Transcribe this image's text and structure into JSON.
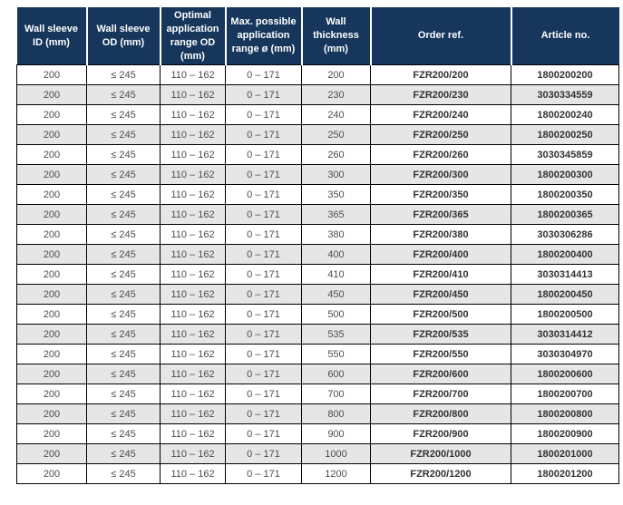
{
  "colors": {
    "header_bg": "#16365c",
    "header_text": "#ffffff",
    "stripe_bg": "#e6e6e6",
    "body_border": "#000000",
    "body_text": "#4d4d4d"
  },
  "table": {
    "columns": [
      {
        "key": "wall-sleeve-id",
        "label": "Wall sleeve ID (mm)"
      },
      {
        "key": "wall-sleeve-od",
        "label": "Wall sleeve OD (mm)"
      },
      {
        "key": "optimal-application-range-od",
        "label": "Optimal application range OD (mm)"
      },
      {
        "key": "max-possible-application-range",
        "label": "Max. possible application range ø (mm)"
      },
      {
        "key": "wall-thickness",
        "label": "Wall thickness (mm)"
      },
      {
        "key": "order-ref",
        "label": "Order ref."
      },
      {
        "key": "article-no",
        "label": "Article no."
      }
    ],
    "rows": [
      [
        "200",
        "≤ 245",
        "110 – 162",
        "0 – 171",
        "200",
        "FZR200/200",
        "1800200200"
      ],
      [
        "200",
        "≤ 245",
        "110 – 162",
        "0 – 171",
        "230",
        "FZR200/230",
        "3030334559"
      ],
      [
        "200",
        "≤ 245",
        "110 – 162",
        "0 – 171",
        "240",
        "FZR200/240",
        "1800200240"
      ],
      [
        "200",
        "≤ 245",
        "110 – 162",
        "0 – 171",
        "250",
        "FZR200/250",
        "1800200250"
      ],
      [
        "200",
        "≤ 245",
        "110 – 162",
        "0 – 171",
        "260",
        "FZR200/260",
        "3030345859"
      ],
      [
        "200",
        "≤ 245",
        "110 – 162",
        "0 – 171",
        "300",
        "FZR200/300",
        "1800200300"
      ],
      [
        "200",
        "≤ 245",
        "110 – 162",
        "0 – 171",
        "350",
        "FZR200/350",
        "1800200350"
      ],
      [
        "200",
        "≤ 245",
        "110 – 162",
        "0 – 171",
        "365",
        "FZR200/365",
        "1800200365"
      ],
      [
        "200",
        "≤ 245",
        "110 – 162",
        "0 – 171",
        "380",
        "FZR200/380",
        "3030306286"
      ],
      [
        "200",
        "≤ 245",
        "110 – 162",
        "0 – 171",
        "400",
        "FZR200/400",
        "1800200400"
      ],
      [
        "200",
        "≤ 245",
        "110 – 162",
        "0 – 171",
        "410",
        "FZR200/410",
        "3030314413"
      ],
      [
        "200",
        "≤ 245",
        "110 – 162",
        "0 – 171",
        "450",
        "FZR200/450",
        "1800200450"
      ],
      [
        "200",
        "≤ 245",
        "110 – 162",
        "0 – 171",
        "500",
        "FZR200/500",
        "1800200500"
      ],
      [
        "200",
        "≤ 245",
        "110 – 162",
        "0 – 171",
        "535",
        "FZR200/535",
        "3030314412"
      ],
      [
        "200",
        "≤ 245",
        "110 – 162",
        "0 – 171",
        "550",
        "FZR200/550",
        "3030304970"
      ],
      [
        "200",
        "≤ 245",
        "110 – 162",
        "0 – 171",
        "600",
        "FZR200/600",
        "1800200600"
      ],
      [
        "200",
        "≤ 245",
        "110 – 162",
        "0 – 171",
        "700",
        "FZR200/700",
        "1800200700"
      ],
      [
        "200",
        "≤ 245",
        "110 – 162",
        "0 – 171",
        "800",
        "FZR200/800",
        "1800200800"
      ],
      [
        "200",
        "≤ 245",
        "110 – 162",
        "0 – 171",
        "900",
        "FZR200/900",
        "1800200900"
      ],
      [
        "200",
        "≤ 245",
        "110 – 162",
        "0 – 171",
        "1000",
        "FZR200/1000",
        "1800201000"
      ],
      [
        "200",
        "≤ 245",
        "110 – 162",
        "0 – 171",
        "1200",
        "FZR200/1200",
        "1800201200"
      ]
    ],
    "bold_column_indexes": [
      5,
      6
    ]
  }
}
